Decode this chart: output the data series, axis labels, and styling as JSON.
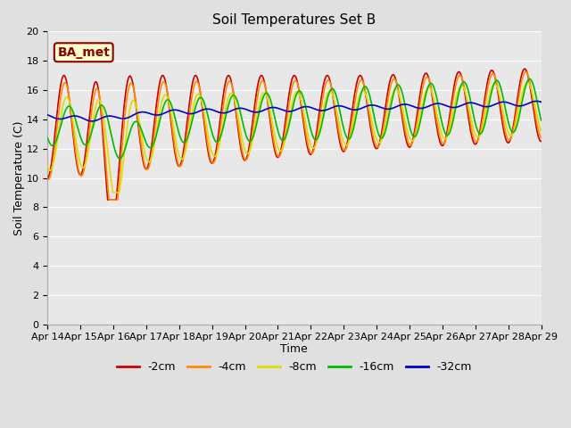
{
  "title": "Soil Temperatures Set B",
  "xlabel": "Time",
  "ylabel": "Soil Temperature (C)",
  "ylim": [
    0,
    20
  ],
  "yticks": [
    0,
    2,
    4,
    6,
    8,
    10,
    12,
    14,
    16,
    18,
    20
  ],
  "xtick_labels": [
    "Apr 14",
    "Apr 15",
    "Apr 16",
    "Apr 17",
    "Apr 18",
    "Apr 19",
    "Apr 20",
    "Apr 21",
    "Apr 22",
    "Apr 23",
    "Apr 24",
    "Apr 25",
    "Apr 26",
    "Apr 27",
    "Apr 28",
    "Apr 29"
  ],
  "annotation_text": "BA_met",
  "line_colors": [
    "#cc0000",
    "#ff8c00",
    "#dddd00",
    "#00bb00",
    "#0000cc"
  ],
  "line_labels": [
    "-2cm",
    "-4cm",
    "-8cm",
    "-16cm",
    "-32cm"
  ],
  "line_width": 1.2,
  "fig_bg": "#e0e0e0",
  "axes_bg": "#e8e8e8",
  "grid_color": "#ffffff",
  "title_fontsize": 11,
  "axis_label_fontsize": 9,
  "tick_fontsize": 8,
  "legend_fontsize": 9
}
